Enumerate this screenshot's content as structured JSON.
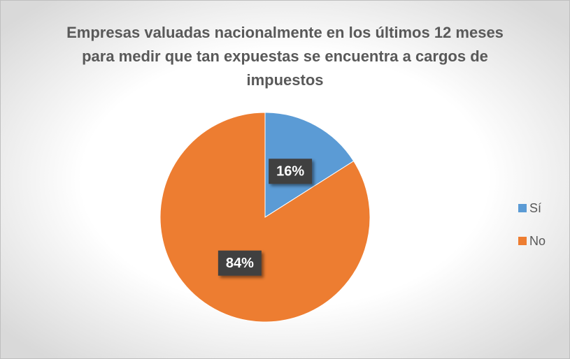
{
  "chart_data": {
    "type": "pie",
    "title": "Empresas valuadas nacionalmente en los últimos 12 meses para medir que tan expuestas se encuentra a cargos de impuestos",
    "categories": [
      "Sí",
      "No"
    ],
    "values": [
      16,
      84
    ],
    "value_labels": [
      "16%",
      "84%"
    ],
    "colors": [
      "#5b9bd5",
      "#ed7d31"
    ],
    "legend": "right"
  }
}
